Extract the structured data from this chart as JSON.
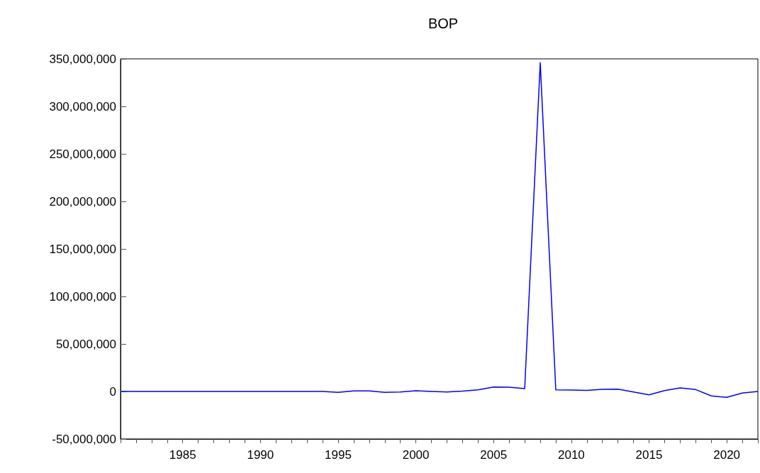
{
  "chart_data": {
    "type": "line",
    "title": "BOP",
    "x": [
      1981,
      1982,
      1983,
      1984,
      1985,
      1986,
      1987,
      1988,
      1989,
      1990,
      1991,
      1992,
      1993,
      1994,
      1995,
      1996,
      1997,
      1998,
      1999,
      2000,
      2001,
      2002,
      2003,
      2004,
      2005,
      2006,
      2007,
      2008,
      2009,
      2010,
      2011,
      2012,
      2013,
      2014,
      2015,
      2016,
      2017,
      2018,
      2019,
      2020,
      2021,
      2022
    ],
    "series": [
      {
        "color": "#0000ff",
        "values": [
          0,
          0,
          0,
          0,
          0,
          0,
          0,
          0,
          0,
          0,
          0,
          0,
          0,
          0,
          -1000000,
          500000,
          500000,
          -1000000,
          -500000,
          700000,
          0,
          -500000,
          300000,
          1700000,
          4700000,
          4500000,
          3000000,
          346000000,
          1700000,
          1500000,
          1200000,
          2200000,
          2500000,
          -500000,
          -3500000,
          1000000,
          3700000,
          2000000,
          -4700000,
          -6200000,
          -1700000,
          0
        ]
      }
    ],
    "xlim": [
      1981,
      2022
    ],
    "xticks": [
      1985,
      1990,
      1995,
      2000,
      2005,
      2010,
      2015,
      2020
    ],
    "ylim": [
      -50000000,
      350000000
    ],
    "yticks": [
      {
        "value": -50000000,
        "label": "-50,000,000"
      },
      0,
      {
        "value": 50000000,
        "label": "50,000,000"
      },
      {
        "value": 100000000,
        "label": "100,000,000"
      },
      {
        "value": 150000000,
        "label": "150,000,000"
      },
      {
        "value": 200000000,
        "label": "200,000,000"
      },
      {
        "value": 250000000,
        "label": "250,000,000"
      },
      {
        "value": 300000000,
        "label": "300,000,000"
      },
      {
        "value": 350000000,
        "label": "350,000,000"
      }
    ],
    "marker": "none",
    "line_style": "solid"
  }
}
